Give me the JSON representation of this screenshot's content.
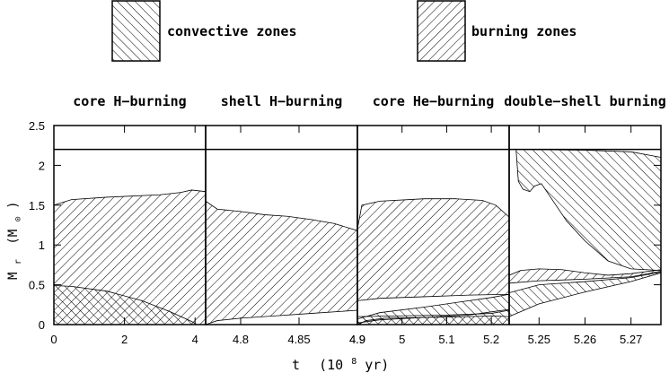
{
  "legend": {
    "convective": "convective zones",
    "burning": "burning zones"
  },
  "axes": {
    "xlabel_t": "t",
    "xlabel_unit": "(10",
    "xlabel_exp": "8",
    "xlabel_tail": " yr)",
    "ylabel_m": "M",
    "ylabel_sub": "r",
    "ylabel_unit": "(M",
    "ylabel_unit_sub": "⊙",
    "ylabel_close": ")"
  },
  "chart_data": {
    "type": "area",
    "ylim": [
      0,
      2.5
    ],
    "yticks": [
      "0",
      "0.5",
      "1",
      "1.5",
      "2",
      "2.5"
    ],
    "yvalues": [
      0,
      0.5,
      1,
      1.5,
      2,
      2.5
    ],
    "total_mass": 2.2,
    "panels": [
      {
        "title": "core H−burning",
        "xlim": [
          0,
          4.3
        ],
        "xticks": [
          {
            "v": 0,
            "l": "0"
          },
          {
            "v": 2,
            "l": "2"
          },
          {
            "v": 4,
            "l": "4"
          }
        ],
        "burning": [
          {
            "top": [
              [
                0,
                1.5
              ],
              [
                0.5,
                1.57
              ],
              [
                1.5,
                1.6
              ],
              [
                3.0,
                1.63
              ],
              [
                3.6,
                1.66
              ],
              [
                3.9,
                1.69
              ],
              [
                4.3,
                1.67
              ]
            ],
            "bottom": [
              [
                0,
                0
              ],
              [
                4.3,
                0
              ]
            ]
          }
        ],
        "convective": [
          {
            "top": [
              [
                0,
                0.49
              ],
              [
                0.5,
                0.48
              ],
              [
                1.5,
                0.42
              ],
              [
                2.5,
                0.3
              ],
              [
                3.3,
                0.16
              ],
              [
                3.9,
                0.04
              ],
              [
                4.05,
                0
              ]
            ],
            "bottom": [
              [
                0,
                0
              ],
              [
                4.05,
                0
              ]
            ]
          }
        ]
      },
      {
        "title": "shell H−burning",
        "xlim": [
          4.77,
          4.9
        ],
        "xticks": [
          {
            "v": 4.8,
            "l": "4.8"
          },
          {
            "v": 4.85,
            "l": "4.85"
          },
          {
            "v": 4.9,
            "l": "4.9"
          }
        ],
        "burning": [
          {
            "top": [
              [
                4.77,
                1.55
              ],
              [
                4.78,
                1.45
              ],
              [
                4.8,
                1.42
              ],
              [
                4.82,
                1.38
              ],
              [
                4.84,
                1.36
              ],
              [
                4.86,
                1.32
              ],
              [
                4.88,
                1.27
              ],
              [
                4.9,
                1.18
              ]
            ],
            "bottom": [
              [
                4.77,
                0
              ],
              [
                4.78,
                0.05
              ],
              [
                4.8,
                0.08
              ],
              [
                4.83,
                0.11
              ],
              [
                4.86,
                0.14
              ],
              [
                4.9,
                0.18
              ]
            ]
          }
        ],
        "convective": []
      },
      {
        "title": "core He−burning",
        "xlim": [
          4.9,
          5.24
        ],
        "xticks": [
          {
            "v": 4.9,
            "l": "4.9"
          },
          {
            "v": 5.0,
            "l": "5"
          },
          {
            "v": 5.1,
            "l": "5.1"
          },
          {
            "v": 5.2,
            "l": "5.2"
          }
        ],
        "burning": [
          {
            "top": [
              [
                4.9,
                1.2
              ],
              [
                4.91,
                1.5
              ],
              [
                4.95,
                1.55
              ],
              [
                5.05,
                1.58
              ],
              [
                5.12,
                1.58
              ],
              [
                5.18,
                1.56
              ],
              [
                5.21,
                1.5
              ],
              [
                5.24,
                1.35
              ]
            ],
            "bottom": [
              [
                4.9,
                0.3
              ],
              [
                4.95,
                0.33
              ],
              [
                5.05,
                0.35
              ],
              [
                5.15,
                0.37
              ],
              [
                5.24,
                0.38
              ]
            ]
          },
          {
            "top": [
              [
                4.9,
                0
              ],
              [
                4.92,
                0.05
              ],
              [
                4.96,
                0.08
              ],
              [
                5.05,
                0.09
              ],
              [
                5.15,
                0.1
              ],
              [
                5.2,
                0.11
              ],
              [
                5.24,
                0.1
              ]
            ],
            "bottom": [
              [
                4.9,
                0
              ],
              [
                5.24,
                0
              ]
            ]
          }
        ],
        "convective": [
          {
            "top": [
              [
                4.9,
                0.07
              ],
              [
                4.95,
                0.15
              ],
              [
                5.05,
                0.22
              ],
              [
                5.15,
                0.3
              ],
              [
                5.2,
                0.34
              ],
              [
                5.24,
                0.38
              ]
            ],
            "bottom": [
              [
                4.9,
                0.02
              ],
              [
                4.95,
                0.06
              ],
              [
                5.05,
                0.09
              ],
              [
                5.15,
                0.12
              ],
              [
                5.2,
                0.16
              ],
              [
                5.24,
                0.19
              ]
            ]
          },
          {
            "top": [
              [
                4.9,
                0.1
              ],
              [
                5.0,
                0.11
              ],
              [
                5.1,
                0.12
              ],
              [
                5.2,
                0.14
              ],
              [
                5.24,
                0.18
              ]
            ],
            "bottom": [
              [
                4.9,
                0
              ],
              [
                5.24,
                0
              ]
            ]
          }
        ]
      },
      {
        "title": "double−shell burning",
        "xlim": [
          5.2435,
          5.2765
        ],
        "xticks": [
          {
            "v": 5.25,
            "l": "5.25"
          },
          {
            "v": 5.26,
            "l": "5.26"
          },
          {
            "v": 5.27,
            "l": "5.27"
          }
        ],
        "burning": [
          {
            "top": [
              [
                5.2435,
                0.62
              ],
              [
                5.246,
                0.68
              ],
              [
                5.25,
                0.7
              ],
              [
                5.255,
                0.69
              ],
              [
                5.26,
                0.65
              ],
              [
                5.265,
                0.62
              ],
              [
                5.27,
                0.64
              ],
              [
                5.2765,
                0.69
              ]
            ],
            "bottom": [
              [
                5.2435,
                0.52
              ],
              [
                5.25,
                0.55
              ],
              [
                5.26,
                0.57
              ],
              [
                5.27,
                0.6
              ],
              [
                5.2765,
                0.67
              ]
            ]
          }
        ],
        "convective": [
          {
            "top": [
              [
                5.245,
                2.2
              ],
              [
                5.26,
                2.19
              ],
              [
                5.27,
                2.17
              ],
              [
                5.2765,
                2.1
              ]
            ],
            "bottom": [
              [
                5.245,
                2.2
              ],
              [
                5.2455,
                1.8
              ],
              [
                5.2465,
                1.7
              ],
              [
                5.248,
                1.67
              ],
              [
                5.249,
                1.74
              ],
              [
                5.2505,
                1.77
              ],
              [
                5.2525,
                1.6
              ],
              [
                5.256,
                1.3
              ],
              [
                5.26,
                1.05
              ],
              [
                5.265,
                0.8
              ],
              [
                5.27,
                0.7
              ],
              [
                5.2765,
                0.68
              ]
            ]
          },
          {
            "top": [
              [
                5.2435,
                0.4
              ],
              [
                5.25,
                0.5
              ],
              [
                5.26,
                0.54
              ],
              [
                5.27,
                0.59
              ],
              [
                5.2765,
                0.66
              ]
            ],
            "bottom": [
              [
                5.2435,
                0.1
              ],
              [
                5.25,
                0.26
              ],
              [
                5.26,
                0.41
              ],
              [
                5.27,
                0.54
              ],
              [
                5.2765,
                0.65
              ]
            ]
          }
        ]
      }
    ]
  }
}
